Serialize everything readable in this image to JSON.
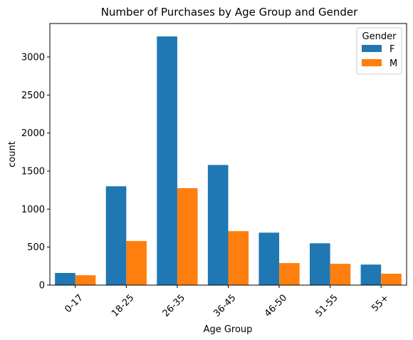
{
  "chart_data": {
    "type": "bar",
    "title": "Number of Purchases by Age Group and Gender",
    "xlabel": "Age Group",
    "ylabel": "count",
    "categories": [
      "0-17",
      "18-25",
      "26-35",
      "36-45",
      "46-50",
      "51-55",
      "55+"
    ],
    "series": [
      {
        "name": "F",
        "color": "#1f77b4",
        "values": [
          160,
          1300,
          3270,
          1580,
          690,
          550,
          270
        ]
      },
      {
        "name": "M",
        "color": "#ff7f0e",
        "values": [
          130,
          580,
          1275,
          710,
          290,
          280,
          150
        ]
      }
    ],
    "ylim": [
      0,
      3440
    ],
    "yticks": [
      0,
      500,
      1000,
      1500,
      2000,
      2500,
      3000
    ],
    "legend": {
      "title": "Gender",
      "placement": "top-right"
    },
    "grid": false
  }
}
